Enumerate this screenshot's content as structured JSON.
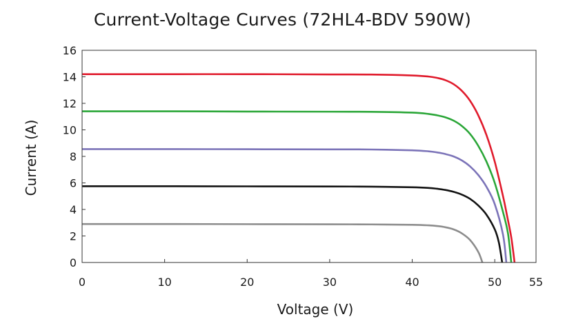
{
  "chart_data": {
    "type": "line",
    "title": "Current-Voltage Curves (72HL4-BDV 590W)",
    "xlabel": "Voltage (V)",
    "ylabel": "Current (A)",
    "xlim": [
      0,
      55
    ],
    "ylim": [
      0,
      16
    ],
    "xticks": [
      0,
      10,
      20,
      30,
      40,
      50,
      55
    ],
    "yticks": [
      0,
      2,
      4,
      6,
      8,
      10,
      12,
      14,
      16
    ],
    "grid": false,
    "series": [
      {
        "color": "#e01a2b",
        "x": [
          0,
          10,
          20,
          30,
          35,
          40,
          42,
          43,
          44,
          45,
          46,
          47,
          48,
          49,
          50,
          51,
          51.5,
          52.0,
          52.4
        ],
        "y": [
          14.2,
          14.2,
          14.2,
          14.18,
          14.17,
          14.1,
          14.02,
          13.92,
          13.75,
          13.45,
          12.95,
          12.2,
          11.1,
          9.6,
          7.6,
          5.0,
          3.5,
          1.9,
          0
        ]
      },
      {
        "color": "#2aa637",
        "x": [
          0,
          10,
          20,
          30,
          35,
          40,
          42,
          43,
          44,
          45,
          46,
          47,
          48,
          49,
          50,
          51,
          51.6,
          52.0
        ],
        "y": [
          11.4,
          11.4,
          11.38,
          11.37,
          11.36,
          11.3,
          11.2,
          11.1,
          10.95,
          10.7,
          10.3,
          9.7,
          8.8,
          7.6,
          6.0,
          3.8,
          2.2,
          0
        ]
      },
      {
        "color": "#7b73b8",
        "x": [
          0,
          10,
          20,
          30,
          35,
          40,
          42,
          43,
          44,
          45,
          46,
          47,
          48,
          49,
          50,
          51,
          51.4
        ],
        "y": [
          8.55,
          8.55,
          8.54,
          8.53,
          8.52,
          8.46,
          8.38,
          8.3,
          8.18,
          8.0,
          7.7,
          7.25,
          6.6,
          5.7,
          4.4,
          2.1,
          0
        ]
      },
      {
        "color": "#111111",
        "x": [
          0,
          10,
          20,
          30,
          35,
          40,
          42,
          43,
          44,
          45,
          46,
          47,
          48,
          49,
          50,
          50.5,
          50.9
        ],
        "y": [
          5.75,
          5.75,
          5.74,
          5.73,
          5.72,
          5.67,
          5.62,
          5.56,
          5.47,
          5.33,
          5.12,
          4.8,
          4.3,
          3.6,
          2.5,
          1.5,
          0
        ]
      },
      {
        "color": "#8c8c8c",
        "x": [
          0,
          10,
          20,
          30,
          35,
          40,
          42,
          43,
          44,
          45,
          46,
          47,
          48,
          48.5
        ],
        "y": [
          2.9,
          2.9,
          2.89,
          2.88,
          2.87,
          2.84,
          2.8,
          2.75,
          2.66,
          2.5,
          2.2,
          1.7,
          0.8,
          0
        ]
      }
    ]
  }
}
